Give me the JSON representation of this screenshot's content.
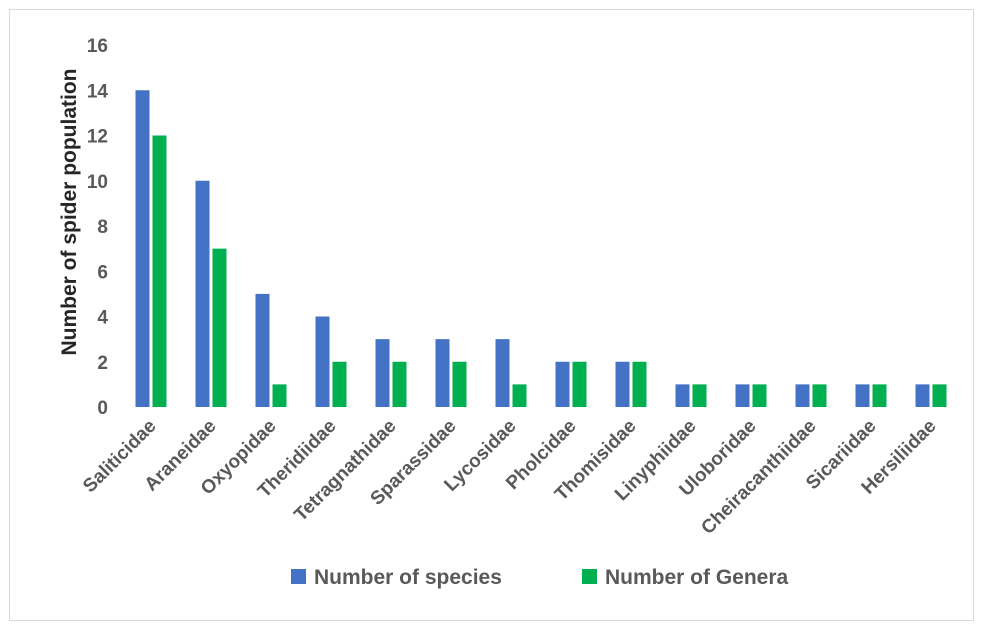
{
  "chart_data": {
    "type": "bar",
    "categories": [
      "Saliticidae",
      "Araneidae",
      "Oxyopidae",
      "Theridiidae",
      "Tetragnathidae",
      "Sparassidae",
      "Lycosidae",
      "Pholcidae",
      "Thomisidae",
      "Linyphiidae",
      "Uloboridae",
      "Cheiracanthiidae",
      "Sicariidae",
      "Hersiliidae"
    ],
    "series": [
      {
        "name": "Number of species",
        "color": "#4472c4",
        "values": [
          14,
          10,
          5,
          4,
          3,
          3,
          3,
          2,
          2,
          1,
          1,
          1,
          1,
          1
        ]
      },
      {
        "name": "Number of Genera",
        "color": "#00b050",
        "values": [
          12,
          7,
          1,
          2,
          2,
          2,
          1,
          2,
          2,
          1,
          1,
          1,
          1,
          1
        ]
      }
    ],
    "title": "",
    "xlabel": "",
    "ylabel": "Number of spider population",
    "ylim": [
      0,
      16
    ],
    "yticks": [
      0,
      2,
      4,
      6,
      8,
      10,
      12,
      14,
      16
    ],
    "grid": false,
    "legend_position": "bottom"
  }
}
